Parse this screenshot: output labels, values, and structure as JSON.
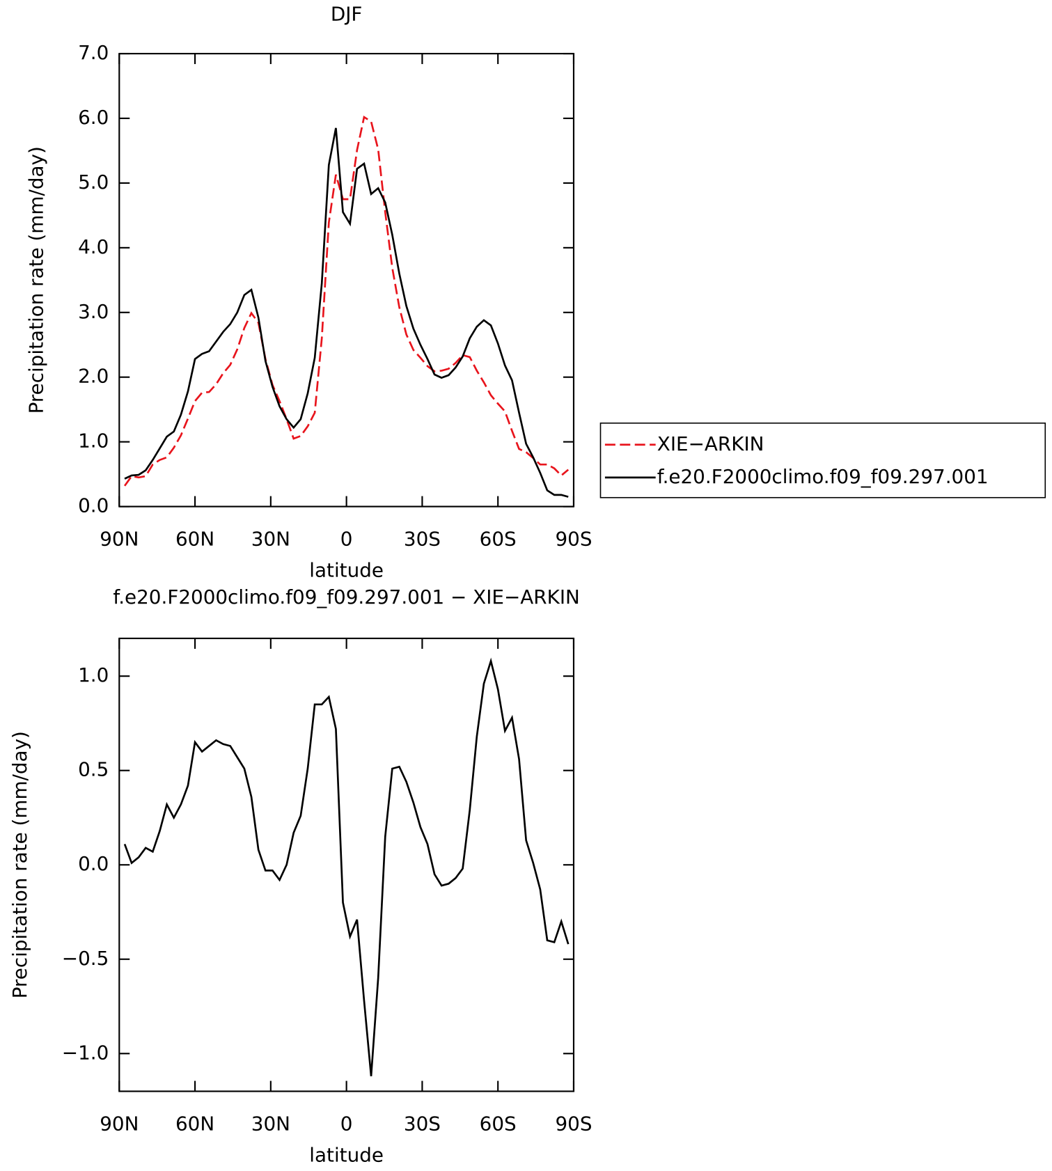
{
  "chart_data": [
    {
      "type": "line",
      "title": "DJF",
      "xlabel": "latitude",
      "ylabel": "Precipitation rate (mm/day)",
      "x": [
        87.86,
        85.1,
        82.32,
        79.53,
        76.74,
        73.95,
        71.16,
        68.37,
        65.58,
        62.79,
        60.0,
        57.21,
        54.42,
        51.63,
        48.84,
        46.04,
        43.25,
        40.46,
        37.67,
        34.88,
        32.09,
        29.3,
        26.51,
        23.72,
        20.93,
        18.14,
        15.35,
        12.56,
        9.77,
        6.98,
        4.19,
        1.4,
        -1.4,
        -4.19,
        -6.98,
        -9.77,
        -12.56,
        -15.35,
        -18.14,
        -20.93,
        -23.72,
        -26.51,
        -29.3,
        -32.09,
        -34.88,
        -37.67,
        -40.46,
        -43.25,
        -46.04,
        -48.84,
        -51.63,
        -54.42,
        -57.21,
        -60.0,
        -62.79,
        -65.58,
        -68.37,
        -71.16,
        -73.95,
        -76.74,
        -79.53,
        -82.32,
        -85.1,
        -87.86
      ],
      "series": [
        {
          "name": "XIE−ARKIN",
          "color": "#e8141c",
          "dash": true,
          "values": [
            0.32,
            0.47,
            0.45,
            0.47,
            0.65,
            0.72,
            0.76,
            0.91,
            1.1,
            1.36,
            1.63,
            1.76,
            1.77,
            1.89,
            2.06,
            2.19,
            2.43,
            2.76,
            2.99,
            2.84,
            2.28,
            1.88,
            1.63,
            1.35,
            1.05,
            1.09,
            1.24,
            1.45,
            2.6,
            4.39,
            5.13,
            4.75,
            4.75,
            5.51,
            6.02,
            5.95,
            5.52,
            4.55,
            3.69,
            3.08,
            2.66,
            2.42,
            2.3,
            2.17,
            2.09,
            2.1,
            2.13,
            2.22,
            2.34,
            2.31,
            2.1,
            1.92,
            1.72,
            1.59,
            1.47,
            1.17,
            0.89,
            0.84,
            0.75,
            0.65,
            0.65,
            0.59,
            0.48,
            0.57
          ]
        },
        {
          "name": "f.e20.F2000climo.f09_f09.297.001",
          "color": "#000000",
          "dash": false,
          "values": [
            0.43,
            0.48,
            0.49,
            0.56,
            0.72,
            0.9,
            1.08,
            1.16,
            1.42,
            1.78,
            2.28,
            2.36,
            2.4,
            2.55,
            2.7,
            2.82,
            3.0,
            3.27,
            3.35,
            2.92,
            2.25,
            1.85,
            1.55,
            1.35,
            1.22,
            1.35,
            1.75,
            2.3,
            3.45,
            5.28,
            5.85,
            4.55,
            4.37,
            5.22,
            5.3,
            4.83,
            4.92,
            4.7,
            4.2,
            3.6,
            3.1,
            2.75,
            2.5,
            2.28,
            2.04,
            1.99,
            2.03,
            2.15,
            2.32,
            2.6,
            2.78,
            2.88,
            2.8,
            2.52,
            2.18,
            1.95,
            1.45,
            0.97,
            0.76,
            0.52,
            0.25,
            0.18,
            0.18,
            0.15
          ]
        }
      ],
      "xlim": [
        90,
        -90
      ],
      "xticks": [
        {
          "value": 90,
          "label": "90N"
        },
        {
          "value": 60,
          "label": "60N"
        },
        {
          "value": 30,
          "label": "30N"
        },
        0,
        {
          "value": -30,
          "label": "30S"
        },
        {
          "value": -60,
          "label": "60S"
        },
        {
          "value": -90,
          "label": "90S"
        }
      ],
      "ylim": [
        0,
        7
      ],
      "yticks": [
        {
          "value": 0,
          "label": "0.0"
        },
        {
          "value": 1,
          "label": "1.0"
        },
        {
          "value": 2,
          "label": "2.0"
        },
        {
          "value": 3,
          "label": "3.0"
        },
        {
          "value": 4,
          "label": "4.0"
        },
        {
          "value": 5,
          "label": "5.0"
        },
        {
          "value": 6,
          "label": "6.0"
        },
        {
          "value": 7,
          "label": "7.0"
        }
      ],
      "legend": "right"
    },
    {
      "type": "line",
      "title": "f.e20.F2000climo.f09_f09.297.001 − XIE−ARKIN",
      "xlabel": "latitude",
      "ylabel": "Precipitation rate (mm/day)",
      "x": [
        87.86,
        85.1,
        82.32,
        79.53,
        76.74,
        73.95,
        71.16,
        68.37,
        65.58,
        62.79,
        60.0,
        57.21,
        54.42,
        51.63,
        48.84,
        46.04,
        43.25,
        40.46,
        37.67,
        34.88,
        32.09,
        29.3,
        26.51,
        23.72,
        20.93,
        18.14,
        15.35,
        12.56,
        9.77,
        6.98,
        4.19,
        1.4,
        -1.4,
        -4.19,
        -6.98,
        -9.77,
        -12.56,
        -15.35,
        -18.14,
        -20.93,
        -23.72,
        -26.51,
        -29.3,
        -32.09,
        -34.88,
        -37.67,
        -40.46,
        -43.25,
        -46.04,
        -48.84,
        -51.63,
        -54.42,
        -57.21,
        -60.0,
        -62.79,
        -65.58,
        -68.37,
        -71.16,
        -73.95,
        -76.74,
        -79.53,
        -82.32,
        -85.1,
        -87.86
      ],
      "series": [
        {
          "color": "#000000",
          "dash": false,
          "values": [
            0.11,
            0.01,
            0.04,
            0.09,
            0.07,
            0.18,
            0.32,
            0.25,
            0.32,
            0.42,
            0.65,
            0.6,
            0.63,
            0.66,
            0.64,
            0.63,
            0.57,
            0.51,
            0.36,
            0.08,
            -0.03,
            -0.03,
            -0.08,
            0.0,
            0.17,
            0.26,
            0.51,
            0.85,
            0.85,
            0.89,
            0.72,
            -0.2,
            -0.38,
            -0.29,
            -0.72,
            -1.12,
            -0.6,
            0.15,
            0.51,
            0.52,
            0.44,
            0.33,
            0.2,
            0.11,
            -0.05,
            -0.11,
            -0.1,
            -0.07,
            -0.02,
            0.29,
            0.68,
            0.96,
            1.08,
            0.93,
            0.71,
            0.78,
            0.56,
            0.13,
            0.01,
            -0.13,
            -0.4,
            -0.41,
            -0.3,
            -0.42
          ]
        }
      ],
      "xlim": [
        90,
        -90
      ],
      "xticks": [
        {
          "value": 90,
          "label": "90N"
        },
        {
          "value": 60,
          "label": "60N"
        },
        {
          "value": 30,
          "label": "30N"
        },
        0,
        {
          "value": -30,
          "label": "30S"
        },
        {
          "value": -60,
          "label": "60S"
        },
        {
          "value": -90,
          "label": "90S"
        }
      ],
      "ylim": [
        -1.2,
        1.2
      ],
      "yticks": [
        {
          "value": 1,
          "label": "1.0"
        },
        0.5,
        {
          "value": 0,
          "label": "0.0"
        },
        {
          "value": -0.5,
          "label": "−0.5"
        },
        {
          "value": -1,
          "label": "−1.0"
        }
      ]
    }
  ]
}
